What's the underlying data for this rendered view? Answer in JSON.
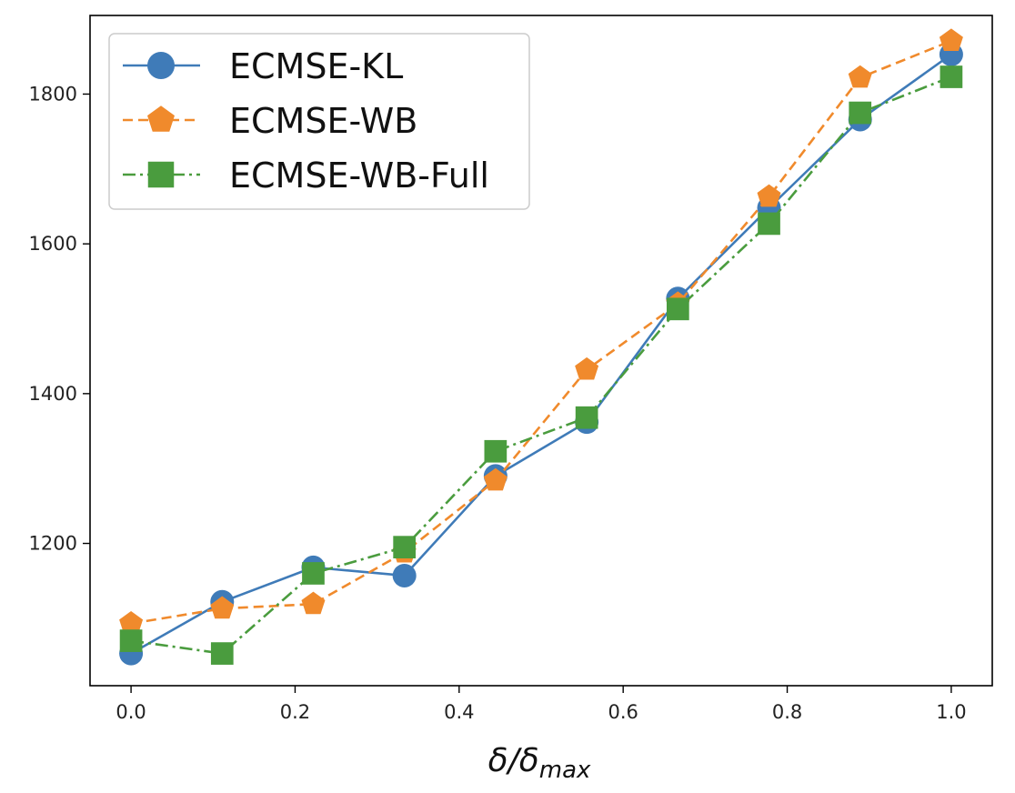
{
  "chart_data": {
    "type": "line",
    "title": "",
    "xlabel": {
      "main": "δ/δ",
      "subscript": "max"
    },
    "ylabel": "",
    "xlim": [
      -0.05,
      1.05
    ],
    "ylim": [
      1010,
      1905
    ],
    "xticks": [
      0.0,
      0.2,
      0.4,
      0.6,
      0.8,
      1.0
    ],
    "xtick_labels": [
      "0.0",
      "0.2",
      "0.4",
      "0.6",
      "0.8",
      "1.0"
    ],
    "yticks": [
      1200,
      1400,
      1600,
      1800
    ],
    "ytick_labels": [
      "1200",
      "1400",
      "1600",
      "1800"
    ],
    "grid": false,
    "legend_position": "top-left",
    "x": [
      0.0,
      0.1111,
      0.2222,
      0.3333,
      0.4444,
      0.5556,
      0.6667,
      0.7778,
      0.8889,
      1.0
    ],
    "series": [
      {
        "name": "ECMSE-KL",
        "color": "#3f7bb8",
        "marker": "circle",
        "linestyle": "solid",
        "values": [
          1053,
          1122,
          1168,
          1157,
          1290,
          1362,
          1527,
          1648,
          1766,
          1853
        ]
      },
      {
        "name": "ECMSE-WB",
        "color": "#f08a2c",
        "marker": "pentagon",
        "linestyle": "dashed",
        "values": [
          1093,
          1113,
          1119,
          1188,
          1284,
          1432,
          1520,
          1663,
          1822,
          1871
        ]
      },
      {
        "name": "ECMSE-WB-Full",
        "color": "#4a9c3e",
        "marker": "square",
        "linestyle": "dashdot",
        "values": [
          1070,
          1053,
          1160,
          1195,
          1323,
          1368,
          1513,
          1627,
          1775,
          1823
        ]
      }
    ]
  }
}
